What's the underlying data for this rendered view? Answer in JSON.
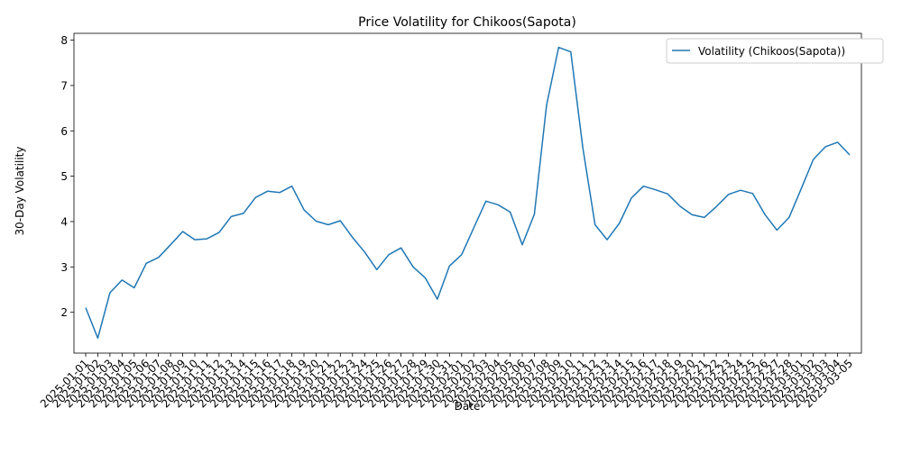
{
  "chart_data": {
    "type": "line",
    "title": "Price Volatility for Chikoos(Sapota)",
    "xlabel": "Date",
    "ylabel": "30-Day Volatility",
    "ylim": [
      1.1,
      8.15
    ],
    "yticks": [
      2,
      3,
      4,
      5,
      6,
      7,
      8
    ],
    "grid": false,
    "legend_position": "top-right",
    "x": [
      "2025-01-01",
      "2025-01-02",
      "2025-01-03",
      "2025-01-04",
      "2025-01-05",
      "2025-01-06",
      "2025-01-07",
      "2025-01-08",
      "2025-01-09",
      "2025-01-10",
      "2025-01-11",
      "2025-01-12",
      "2025-01-13",
      "2025-01-14",
      "2025-01-15",
      "2025-01-16",
      "2025-01-17",
      "2025-01-18",
      "2025-01-19",
      "2025-01-20",
      "2025-01-21",
      "2025-01-22",
      "2025-01-23",
      "2025-01-24",
      "2025-01-25",
      "2025-01-26",
      "2025-01-27",
      "2025-01-28",
      "2025-01-29",
      "2025-01-30",
      "2025-01-31",
      "2025-02-01",
      "2025-02-02",
      "2025-02-03",
      "2025-02-04",
      "2025-02-05",
      "2025-02-06",
      "2025-02-07",
      "2025-02-08",
      "2025-02-09",
      "2025-02-10",
      "2025-02-11",
      "2025-02-12",
      "2025-02-13",
      "2025-02-14",
      "2025-02-15",
      "2025-02-16",
      "2025-02-17",
      "2025-02-18",
      "2025-02-19",
      "2025-02-20",
      "2025-02-21",
      "2025-02-22",
      "2025-02-23",
      "2025-02-24",
      "2025-02-25",
      "2025-02-26",
      "2025-02-27",
      "2025-02-28",
      "2025-03-01",
      "2025-03-02",
      "2025-03-03",
      "2025-03-04",
      "2025-03-05"
    ],
    "series": [
      {
        "name": "Volatility (Chikoos(Sapota))",
        "color": "#1f77b4",
        "values": [
          2.1,
          1.43,
          2.43,
          2.71,
          2.54,
          3.08,
          3.21,
          3.49,
          3.78,
          3.6,
          3.62,
          3.76,
          4.11,
          4.18,
          4.53,
          4.67,
          4.64,
          4.78,
          4.26,
          4.01,
          3.93,
          4.02,
          3.65,
          3.33,
          2.94,
          3.27,
          3.42,
          3.0,
          2.76,
          2.29,
          3.02,
          3.27,
          3.86,
          4.45,
          4.37,
          4.21,
          3.49,
          4.16,
          6.56,
          7.84,
          7.74,
          5.62,
          3.93,
          3.6,
          3.96,
          4.52,
          4.78,
          4.7,
          4.61,
          4.34,
          4.15,
          4.09,
          4.33,
          4.6,
          4.69,
          4.62,
          4.16,
          3.81,
          4.09,
          4.72,
          5.37,
          5.65,
          5.75,
          5.47
        ]
      }
    ]
  }
}
